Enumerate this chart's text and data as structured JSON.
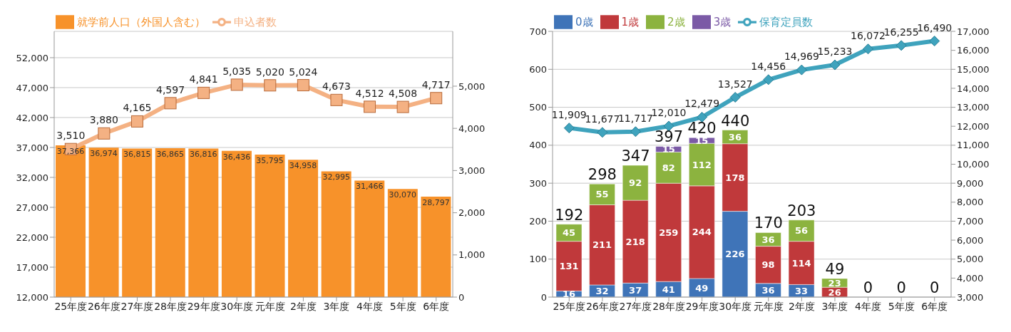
{
  "chart_data": [
    {
      "type": "bar",
      "legend": "top left",
      "grid": "y",
      "categories": [
        "25年度",
        "26年度",
        "27年度",
        "28年度",
        "29年度",
        "30年度",
        "元年度",
        "2年度",
        "3年度",
        "4年度",
        "5年度",
        "6年度"
      ],
      "ylim": [
        12000,
        56400
      ],
      "yticks": [
        {
          "value": 12000,
          "label": "12,000"
        },
        {
          "value": 17000,
          "label": "17,000"
        },
        {
          "value": 22000,
          "label": "22,000"
        },
        {
          "value": 27000,
          "label": "27,000"
        },
        {
          "value": 32000,
          "label": "32,000"
        },
        {
          "value": 37000,
          "label": "37,000"
        },
        {
          "value": 42000,
          "label": "42,000"
        },
        {
          "value": 47000,
          "label": "47,000"
        },
        {
          "value": 52000,
          "label": "52,000"
        }
      ],
      "y2lim": [
        0,
        6300
      ],
      "y2ticks": [
        0,
        {
          "value": 1000,
          "label": "1,000"
        },
        {
          "value": 2000,
          "label": "2,000"
        },
        {
          "value": 3000,
          "label": "3,000"
        },
        {
          "value": 4000,
          "label": "4,000"
        },
        {
          "value": 5000,
          "label": "5,000"
        }
      ],
      "series": [
        {
          "name": "就学前人口（外国人含む）",
          "color": "#f7922a",
          "values": [
            37366,
            36974,
            36815,
            36865,
            36816,
            36436,
            35795,
            34958,
            32995,
            31466,
            30070,
            28797
          ],
          "value_labels": [
            "37,366",
            "36,974",
            "36,815",
            "36,865",
            "36,816",
            "36,436",
            "35,795",
            "34,958",
            "32,995",
            "31,466",
            "30,070",
            "28,797"
          ]
        },
        {
          "name": "申込者数",
          "type": "line",
          "axis": "y2",
          "marker": "square",
          "color": "#f4b183",
          "values": [
            3510,
            3880,
            4165,
            4597,
            4841,
            5035,
            5020,
            5024,
            4673,
            4512,
            4508,
            4717
          ],
          "value_labels": [
            "3,510",
            "3,880",
            "4,165",
            "4,597",
            "4,841",
            "5,035",
            "5,020",
            "5,024",
            "4,673",
            "4,512",
            "4,508",
            "4,717"
          ]
        }
      ]
    },
    {
      "type": "bar",
      "legend": "top left",
      "grid": "y",
      "stacked": true,
      "categories": [
        "25年度",
        "26年度",
        "27年度",
        "28年度",
        "29年度",
        "30年度",
        "元年度",
        "2年度",
        "3年度",
        "4年度",
        "5年度",
        "6年度"
      ],
      "ylim": [
        0,
        700
      ],
      "yticks": [
        0,
        100,
        200,
        300,
        400,
        500,
        600,
        700
      ],
      "y2lim": [
        3000,
        17000
      ],
      "y2ticks": [
        {
          "value": 3000,
          "label": "3,000"
        },
        {
          "value": 4000,
          "label": "4,000"
        },
        {
          "value": 5000,
          "label": "5,000"
        },
        {
          "value": 6000,
          "label": "6,000"
        },
        {
          "value": 7000,
          "label": "7,000"
        },
        {
          "value": 8000,
          "label": "8,000"
        },
        {
          "value": 9000,
          "label": "9,000"
        },
        {
          "value": 10000,
          "label": "10,000"
        },
        {
          "value": 11000,
          "label": "11,000"
        },
        {
          "value": 12000,
          "label": "12,000"
        },
        {
          "value": 13000,
          "label": "13,000"
        },
        {
          "value": 14000,
          "label": "14,000"
        },
        {
          "value": 15000,
          "label": "15,000"
        },
        {
          "value": 16000,
          "label": "16,000"
        },
        {
          "value": 17000,
          "label": "17,000"
        }
      ],
      "data_labels": true,
      "totals": [
        "192",
        "298",
        "347",
        "397",
        "420",
        "440",
        "170",
        "203",
        "49",
        "0",
        "0",
        "0"
      ],
      "series": [
        {
          "name": "0歳",
          "color": "#3f74b8",
          "values": [
            16,
            32,
            37,
            41,
            49,
            226,
            36,
            33,
            null,
            null,
            null,
            null
          ]
        },
        {
          "name": "1歳",
          "color": "#c0393b",
          "values": [
            131,
            211,
            218,
            259,
            244,
            178,
            98,
            114,
            26,
            null,
            null,
            null
          ]
        },
        {
          "name": "2歳",
          "color": "#8cb33f",
          "values": [
            45,
            55,
            92,
            82,
            112,
            36,
            36,
            56,
            23,
            null,
            null,
            null
          ]
        },
        {
          "name": "3歳",
          "color": "#7b5aa6",
          "values": [
            null,
            null,
            null,
            15,
            15,
            null,
            null,
            null,
            null,
            null,
            null,
            null
          ]
        },
        {
          "name": "保育定員数",
          "type": "line",
          "axis": "y2",
          "marker": "diamond",
          "color": "#3fa3bd",
          "values": [
            11909,
            11677,
            11717,
            12010,
            12479,
            13527,
            14456,
            14969,
            15233,
            16072,
            16255,
            16490
          ],
          "value_labels": [
            "11,909",
            "11,677",
            "11,717",
            "12,010",
            "12,479",
            "13,527",
            "14,456",
            "14,969",
            "15,233",
            "16,072",
            "16,255",
            "16,490"
          ]
        }
      ]
    }
  ]
}
